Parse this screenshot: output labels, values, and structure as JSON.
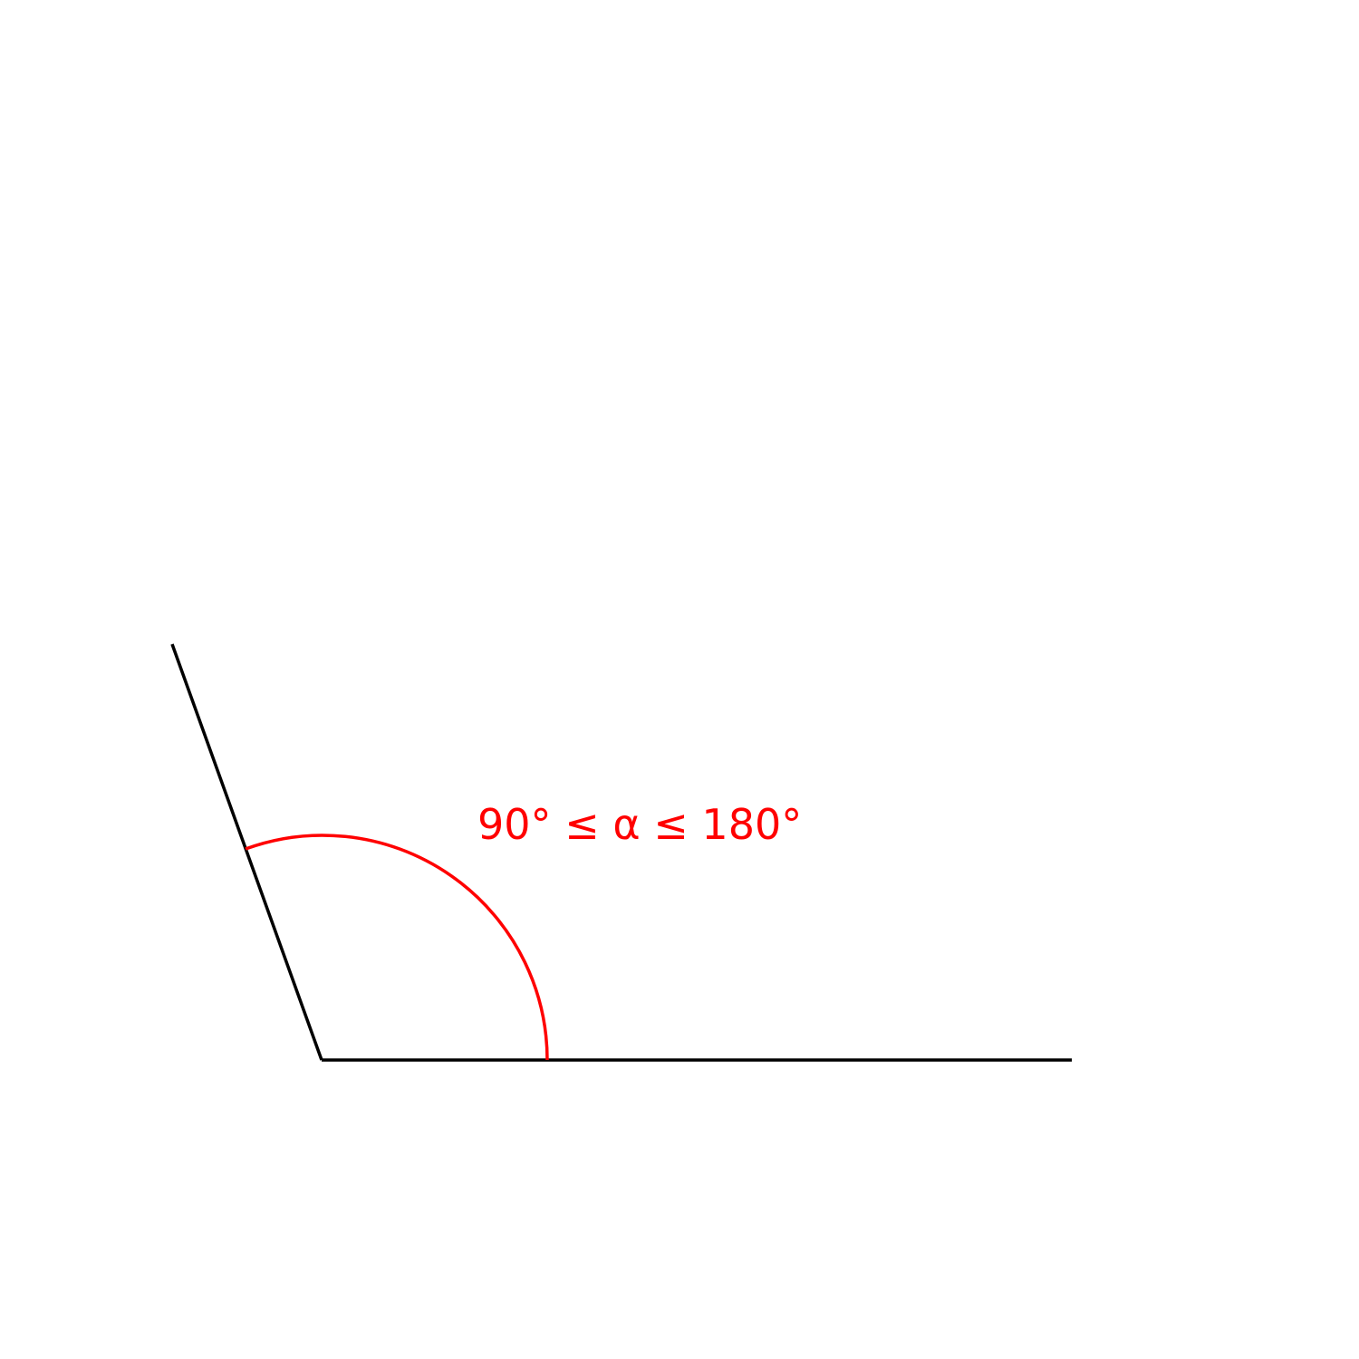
{
  "diagram": {
    "angle_label": "90° ≤ α ≤ 180°",
    "colors": {
      "rays": "#000000",
      "arc": "#ff0000",
      "label": "#ff0000"
    }
  }
}
